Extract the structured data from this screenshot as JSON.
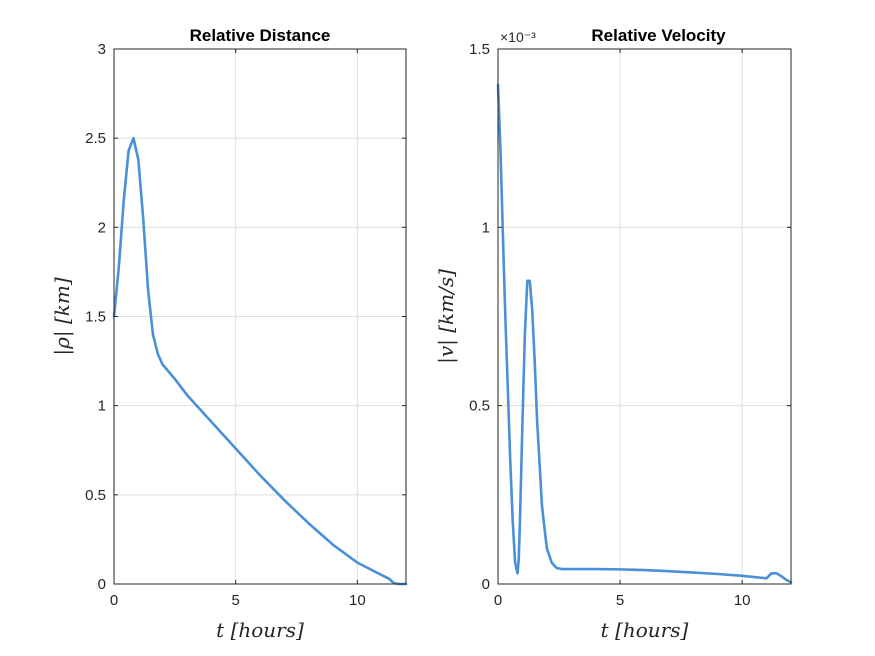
{
  "chart_data": [
    {
      "type": "line",
      "title": "Relative Distance",
      "xlabel": "t [hours]",
      "ylabel": "|ρ| [km]",
      "xlim": [
        0,
        12
      ],
      "ylim": [
        0,
        3
      ],
      "xticks": [
        "0",
        "5",
        "10"
      ],
      "yticks": [
        "0",
        "0.5",
        "1",
        "1.5",
        "2",
        "2.5",
        "3"
      ],
      "grid": true,
      "color": "#4a90d9",
      "x": [
        0,
        0.2,
        0.4,
        0.6,
        0.8,
        1.0,
        1.2,
        1.4,
        1.6,
        1.8,
        2.0,
        2.5,
        3,
        4,
        5,
        6,
        7,
        8,
        9,
        10,
        11,
        11.3,
        11.5,
        11.7,
        12
      ],
      "y": [
        1.5,
        1.78,
        2.15,
        2.43,
        2.5,
        2.38,
        2.05,
        1.65,
        1.4,
        1.29,
        1.23,
        1.15,
        1.06,
        0.91,
        0.76,
        0.61,
        0.47,
        0.34,
        0.22,
        0.12,
        0.05,
        0.03,
        0.005,
        0.0,
        0.0
      ]
    },
    {
      "type": "line",
      "title": "Relative Velocity",
      "xlabel": "t [hours]",
      "ylabel": "|v| [km/s]",
      "exponent_label": "×10⁻³",
      "xlim": [
        0,
        12
      ],
      "ylim": [
        0,
        0.0015
      ],
      "xticks": [
        "0",
        "5",
        "10"
      ],
      "yticks": [
        "0",
        "0.5",
        "1",
        "1.5"
      ],
      "grid": true,
      "color": "#4a90d9",
      "x": [
        0,
        0.1,
        0.2,
        0.3,
        0.4,
        0.5,
        0.6,
        0.7,
        0.8,
        0.85,
        0.9,
        1.0,
        1.1,
        1.2,
        1.3,
        1.4,
        1.5,
        1.6,
        1.8,
        2.0,
        2.2,
        2.4,
        2.6,
        3,
        4,
        5,
        6,
        7,
        8,
        9,
        10,
        11,
        11.2,
        11.4,
        11.6,
        11.8,
        12
      ],
      "y": [
        0.0014,
        0.00122,
        0.00098,
        0.00075,
        0.00055,
        0.00035,
        0.00018,
        6e-05,
        3e-05,
        7e-05,
        0.00018,
        0.00045,
        0.0007,
        0.00085,
        0.00085,
        0.00077,
        0.00063,
        0.00046,
        0.00022,
        0.0001,
        6e-05,
        4.5e-05,
        4.2e-05,
        4.2e-05,
        4.2e-05,
        4.1e-05,
        3.9e-05,
        3.6e-05,
        3.2e-05,
        2.8e-05,
        2.3e-05,
        1.6e-05,
        3e-05,
        3e-05,
        2.2e-05,
        1.2e-05,
        5e-06
      ]
    }
  ]
}
